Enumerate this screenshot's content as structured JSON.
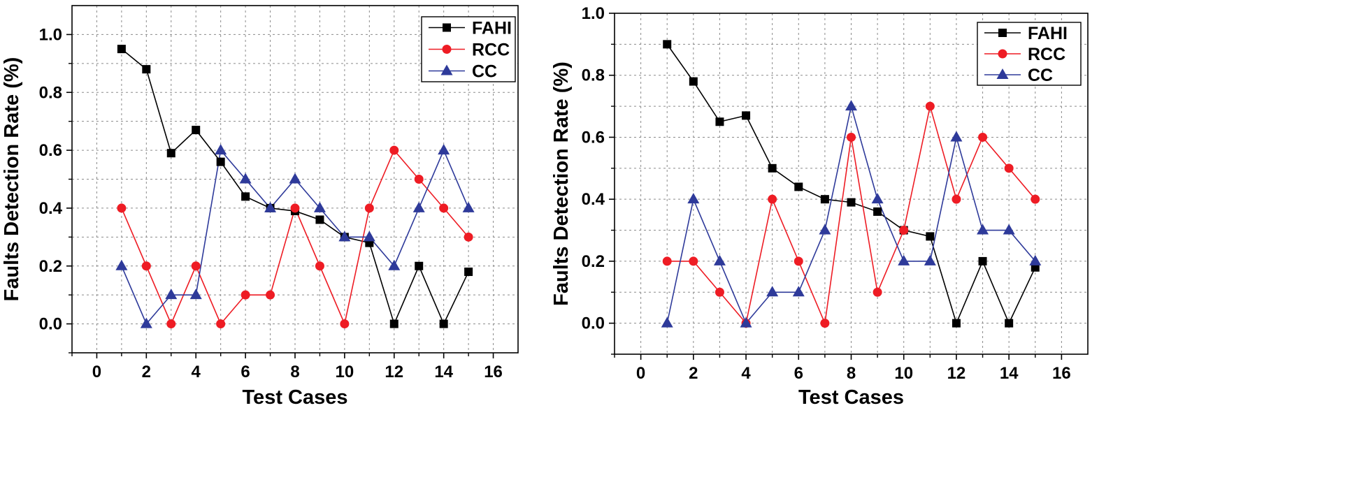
{
  "chart_data": [
    {
      "type": "line",
      "title": "",
      "xlabel": "Test Cases",
      "ylabel": "Faults Detection Rate (%)",
      "xlim": [
        -1,
        17
      ],
      "ylim": [
        -0.1,
        1.1
      ],
      "xticks": [
        0,
        2,
        4,
        6,
        8,
        10,
        12,
        14,
        16
      ],
      "xtick_labels": [
        "0",
        "2",
        "4",
        "6",
        "8",
        "10",
        "12",
        "14",
        "16"
      ],
      "yticks": [
        0.0,
        0.2,
        0.4,
        0.6,
        0.8,
        1.0
      ],
      "ytick_labels": [
        "0.0",
        "0.2",
        "0.4",
        "0.6",
        "0.8",
        "1.0"
      ],
      "grid": true,
      "legend_position": "top-right",
      "x": [
        1,
        2,
        3,
        4,
        5,
        6,
        7,
        8,
        9,
        10,
        11,
        12,
        13,
        14,
        15
      ],
      "series": [
        {
          "name": "FAHI",
          "color": "#000000",
          "marker": "square",
          "values": [
            0.95,
            0.88,
            0.59,
            0.67,
            0.56,
            0.44,
            0.4,
            0.39,
            0.36,
            0.3,
            0.28,
            0.0,
            0.2,
            0.0,
            0.18
          ]
        },
        {
          "name": "RCC",
          "color": "#ee1c24",
          "marker": "circle",
          "values": [
            0.4,
            0.2,
            0.0,
            0.2,
            0.0,
            0.1,
            0.1,
            0.4,
            0.2,
            0.0,
            0.4,
            0.6,
            0.5,
            0.4,
            0.3
          ]
        },
        {
          "name": "CC",
          "color": "#2e3a9a",
          "marker": "triangle",
          "values": [
            0.2,
            0.0,
            0.1,
            0.1,
            0.6,
            0.5,
            0.4,
            0.5,
            0.4,
            0.3,
            0.3,
            0.2,
            0.4,
            0.6,
            0.4
          ]
        }
      ]
    },
    {
      "type": "line",
      "title": "",
      "xlabel": "Test Cases",
      "ylabel": "Faults Detection Rate (%)",
      "xlim": [
        -1,
        17
      ],
      "ylim": [
        -0.1,
        1.0
      ],
      "xticks": [
        0,
        2,
        4,
        6,
        8,
        10,
        12,
        14,
        16
      ],
      "xtick_labels": [
        "0",
        "2",
        "4",
        "6",
        "8",
        "10",
        "12",
        "14",
        "16"
      ],
      "yticks": [
        0.0,
        0.2,
        0.4,
        0.6,
        0.8,
        1.0
      ],
      "ytick_labels": [
        "0.0",
        "0.2",
        "0.4",
        "0.6",
        "0.8",
        "1.0"
      ],
      "grid": true,
      "legend_position": "top-right",
      "x": [
        1,
        2,
        3,
        4,
        5,
        6,
        7,
        8,
        9,
        10,
        11,
        12,
        13,
        14,
        15
      ],
      "series": [
        {
          "name": "FAHI",
          "color": "#000000",
          "marker": "square",
          "values": [
            0.9,
            0.78,
            0.65,
            0.67,
            0.5,
            0.44,
            0.4,
            0.39,
            0.36,
            0.3,
            0.28,
            0.0,
            0.2,
            0.0,
            0.18
          ]
        },
        {
          "name": "RCC",
          "color": "#ee1c24",
          "marker": "circle",
          "values": [
            0.2,
            0.2,
            0.1,
            0.0,
            0.4,
            0.2,
            0.0,
            0.6,
            0.1,
            0.3,
            0.7,
            0.4,
            0.6,
            0.5,
            0.4
          ]
        },
        {
          "name": "CC",
          "color": "#2e3a9a",
          "marker": "triangle",
          "values": [
            0.0,
            0.4,
            0.2,
            0.0,
            0.1,
            0.1,
            0.3,
            0.7,
            0.4,
            0.2,
            0.2,
            0.6,
            0.3,
            0.3,
            0.2
          ]
        }
      ]
    }
  ]
}
